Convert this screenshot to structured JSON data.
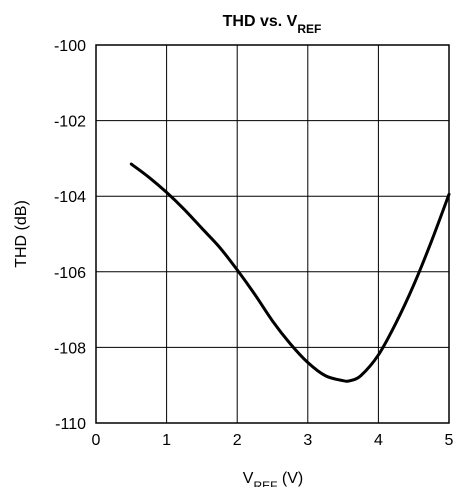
{
  "chart_data": {
    "type": "line",
    "title": "THD vs. V",
    "title_subscript": "REF",
    "xlabel": "V",
    "xlabel_subscript": "REF",
    "xlabel_suffix": " (V)",
    "ylabel": "THD (dB)",
    "xlim": [
      0,
      5
    ],
    "ylim": [
      -110,
      -100
    ],
    "xticks": [
      0,
      1,
      2,
      3,
      4,
      5
    ],
    "xtick_labels": [
      "0",
      "1",
      "2",
      "3",
      "4",
      "5"
    ],
    "yticks": [
      -100,
      -102,
      -104,
      -106,
      -108,
      -110
    ],
    "ytick_labels": [
      "-100",
      "-102",
      "-104",
      "-106",
      "-108",
      "-110"
    ],
    "grid": true,
    "line_color": "#000000",
    "series": [
      {
        "x": [
          0.5,
          0.75,
          1.0,
          1.25,
          1.5,
          1.75,
          2.0,
          2.25,
          2.5,
          2.75,
          3.0,
          3.25,
          3.5,
          3.6,
          3.75,
          4.0,
          4.25,
          4.5,
          4.75,
          5.0
        ],
        "values": [
          -103.15,
          -103.5,
          -103.9,
          -104.35,
          -104.85,
          -105.35,
          -105.95,
          -106.6,
          -107.3,
          -107.9,
          -108.4,
          -108.75,
          -108.88,
          -108.88,
          -108.75,
          -108.2,
          -107.35,
          -106.35,
          -105.2,
          -103.95
        ]
      }
    ]
  }
}
